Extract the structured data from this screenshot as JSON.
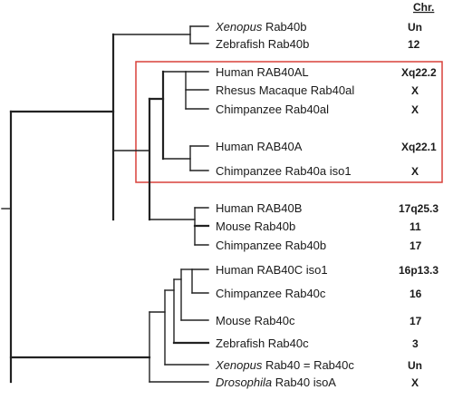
{
  "header": {
    "chr_label": "Chr."
  },
  "taxa": [
    {
      "genus": "Xenopus",
      "name": " Rab40b",
      "chr": "Un"
    },
    {
      "genus": "",
      "name": "Zebrafish Rab40b",
      "chr": "12"
    },
    {
      "genus": "",
      "name": "Human RAB40AL",
      "chr": "Xq22.2"
    },
    {
      "genus": "",
      "name": "Rhesus Macaque Rab40al",
      "chr": "X"
    },
    {
      "genus": "",
      "name": "Chimpanzee Rab40al",
      "chr": "X"
    },
    {
      "genus": "",
      "name": "Human RAB40A",
      "chr": "Xq22.1"
    },
    {
      "genus": "",
      "name": "Chimpanzee Rab40a iso1",
      "chr": "X"
    },
    {
      "genus": "",
      "name": "Human RAB40B",
      "chr": "17q25.3"
    },
    {
      "genus": "",
      "name": "Mouse Rab40b",
      "chr": "11"
    },
    {
      "genus": "",
      "name": "Chimpanzee Rab40b",
      "chr": "17"
    },
    {
      "genus": "",
      "name": "Human RAB40C iso1",
      "chr": "16p13.3"
    },
    {
      "genus": "",
      "name": "Chimpanzee Rab40c",
      "chr": "16"
    },
    {
      "genus": "",
      "name": "Mouse Rab40c",
      "chr": "17"
    },
    {
      "genus": "",
      "name": "Zebrafish Rab40c",
      "chr": "3"
    },
    {
      "genus": "Xenopus",
      "name": " Rab40 = Rab40c",
      "chr": "Un"
    },
    {
      "genus": "Drosophila",
      "name": " Rab40 isoA",
      "chr": "X"
    }
  ],
  "colors": {
    "highlight_box": "#d9413a",
    "lines": "#222222",
    "text": "#1a1a1a"
  }
}
